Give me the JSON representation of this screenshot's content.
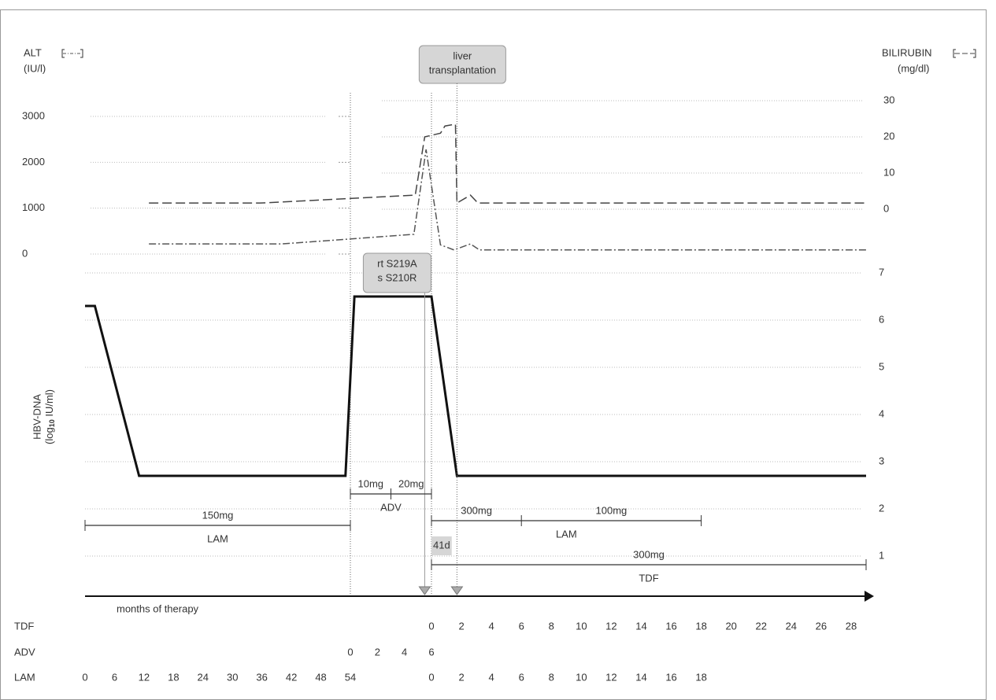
{
  "chart_data": {
    "type": "line",
    "xlim": [
      0,
      89
    ],
    "axis_label": "months of therapy",
    "ylim": [
      0,
      3000
    ],
    "yticks": [
      0,
      1000,
      2000,
      3000
    ],
    "y2lim": [
      0,
      30
    ],
    "y2ticks": [
      0,
      10,
      20,
      30
    ],
    "y3lim": [
      0,
      7
    ],
    "y3ticks": [
      1,
      2,
      3,
      4,
      5,
      6,
      7
    ],
    "series": [
      {
        "name": "ALT",
        "unit": "(IU/l)",
        "axis": "y",
        "color": "#555555",
        "dash": "9 3 2 3",
        "x": [
          13,
          40,
          58.7,
          59.6,
          60.6,
          61.5,
          62.6,
          63.2,
          89
        ],
        "values": [
          220,
          220,
          430,
          2280,
          200,
          90,
          220,
          90,
          90
        ]
      },
      {
        "name": "BILIRUBIN",
        "unit": "(mg/dl)",
        "axis": "y2",
        "color": "#444444",
        "dash": "12 5",
        "x": [
          13,
          35.6,
          58.8,
          59.5,
          60.6,
          60.9,
          61.6,
          61.7,
          62.6,
          63.1,
          89
        ],
        "values": [
          1.7,
          1.7,
          3.9,
          20,
          21,
          23,
          23.5,
          1.7,
          3.9,
          1.7,
          1.7
        ]
      },
      {
        "name": "HBV-DNA",
        "unit": {
          "before": "(log",
          "sub": "10",
          "after": " IU/ml)"
        },
        "axis": "y3",
        "color": "#111111",
        "x": [
          0,
          2,
          11,
          53,
          54.3,
          60,
          61.7,
          89
        ],
        "values": [
          6.3,
          6.3,
          2.7,
          2.7,
          6.5,
          6.5,
          2.7,
          2.7
        ]
      }
    ],
    "treatments": [
      {
        "name": "LAM",
        "segments": [
          {
            "dose": "150mg",
            "start": 0,
            "end": 54
          }
        ]
      },
      {
        "name": "ADV",
        "segments": [
          {
            "dose": "10mg",
            "start": 54,
            "end": 57
          },
          {
            "dose": "20mg",
            "start": 57,
            "end": 60
          }
        ]
      },
      {
        "name": "LAM",
        "segments": [
          {
            "dose": "300mg",
            "start": 60,
            "end": 66
          },
          {
            "dose": "100mg",
            "start": 66,
            "end": 78
          }
        ]
      },
      {
        "name": "TDF",
        "segments": [
          {
            "dose": "300mg",
            "start": 60,
            "end": 89
          }
        ]
      }
    ],
    "mutation": {
      "text": [
        "rt S219A",
        "s S210R"
      ],
      "x": 59.5
    },
    "transplant": {
      "text": [
        "liver",
        "transplantation"
      ],
      "x": 61.7
    },
    "interval": {
      "text": "41d",
      "start": 60,
      "end": 61.35
    },
    "rows": [
      {
        "name": "TDF",
        "ticks": [
          {
            "value": 60,
            "label": "0"
          },
          {
            "value": 62,
            "label": "2"
          },
          {
            "value": 64,
            "label": "4"
          },
          {
            "value": 66,
            "label": "6"
          },
          {
            "value": 68,
            "label": "8"
          },
          {
            "value": 70,
            "label": "10"
          },
          {
            "value": 72,
            "label": "12"
          },
          {
            "value": 74,
            "label": "14"
          },
          {
            "value": 76,
            "label": "16"
          },
          {
            "value": 78,
            "label": "18"
          },
          {
            "value": 80,
            "label": "20"
          },
          {
            "value": 82,
            "label": "22"
          },
          {
            "value": 84,
            "label": "24"
          },
          {
            "value": 86,
            "label": "26"
          },
          {
            "value": 88,
            "label": "28"
          }
        ]
      },
      {
        "name": "ADV",
        "ticks": [
          {
            "value": 54,
            "label": "0"
          },
          {
            "value": 56,
            "label": "2"
          },
          {
            "value": 58,
            "label": "4"
          },
          {
            "value": 60,
            "label": "6"
          }
        ]
      },
      {
        "name": "LAM",
        "ticks": [
          0,
          6,
          12,
          18,
          24,
          30,
          36,
          42,
          48,
          54,
          {
            "value": 60,
            "label": "0"
          },
          {
            "value": 62,
            "label": "2"
          },
          {
            "value": 64,
            "label": "4"
          },
          {
            "value": 66,
            "label": "6"
          },
          {
            "value": 68,
            "label": "8"
          },
          {
            "value": 70,
            "label": "10"
          },
          {
            "value": 72,
            "label": "12"
          },
          {
            "value": 74,
            "label": "14"
          },
          {
            "value": 76,
            "label": "16"
          },
          {
            "value": 78,
            "label": "18"
          }
        ]
      }
    ]
  }
}
